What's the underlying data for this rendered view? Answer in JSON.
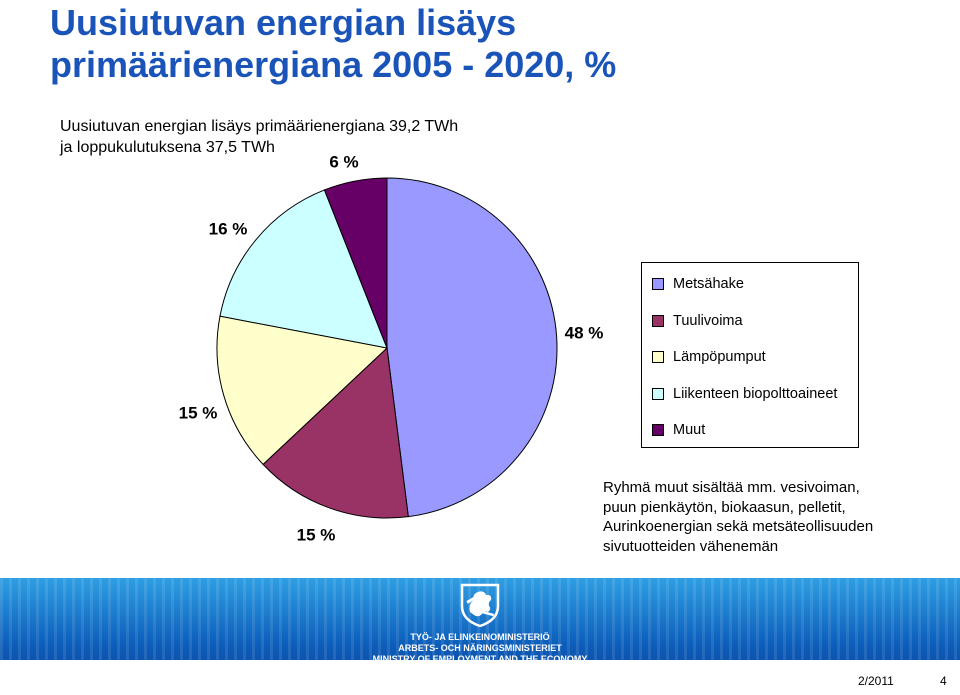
{
  "slide": {
    "title_line1": "Uusiutuvan energian lisäys",
    "title_line2": "primäärienergiana 2005 - 2020, %",
    "subtitle_line1": "Uusiutuvan energian lisäys primäärienergiana 39,2 TWh",
    "subtitle_line2": "ja loppukulutuksena 37,5 TWh",
    "note_lines": [
      "Ryhmä muut sisältää mm. vesivoiman,",
      "puun pienkäytön, biokaasun, pelletit,",
      "Aurinkoenergian sekä metsäteollisuuden",
      "sivutuotteiden vähenemän"
    ]
  },
  "chart_data": {
    "type": "pie",
    "title": "",
    "legend_position": "right",
    "slices": [
      {
        "name": "Metsähake",
        "value": 48,
        "label": "48 %",
        "color": "#9999ff"
      },
      {
        "name": "Tuulivoima",
        "value": 15,
        "label": "15 %",
        "color": "#993366"
      },
      {
        "name": "Lämpöpumput",
        "value": 15,
        "label": "15 %",
        "color": "#ffffcc"
      },
      {
        "name": "Liikenteen biopolttoaineet",
        "value": 16,
        "label": "16 %",
        "color": "#ccffff"
      },
      {
        "name": "Muut",
        "value": 6,
        "label": "6 %",
        "color": "#660066"
      }
    ]
  },
  "footer": {
    "ministry_line1": "TYÖ- JA ELINKEINOMINISTERIÖ",
    "ministry_line2": "ARBETS- OCH NÄRINGSMINISTERIET",
    "ministry_line3": "MINISTRY OF EMPLOYMENT AND THE ECONOMY",
    "date": "2/2011",
    "page_number": "4",
    "band_color": "#0d5fbc"
  },
  "icons": {
    "logo": "lion-coat-of-arms-icon"
  }
}
